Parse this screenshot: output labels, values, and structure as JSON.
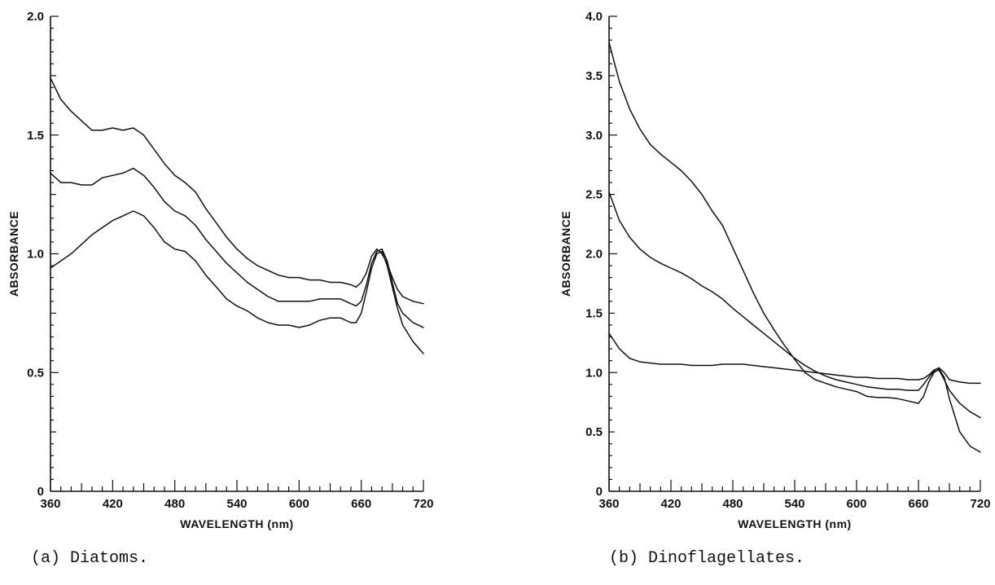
{
  "chart_data": [
    {
      "type": "line",
      "title": "",
      "caption": "(a) Diatoms.",
      "xlabel": "WAVELENGTH (nm)",
      "ylabel": "ABSORBANCE",
      "xlim": [
        360,
        720
      ],
      "ylim": [
        0,
        2.0
      ],
      "xticks": [
        360,
        420,
        480,
        540,
        600,
        660,
        720
      ],
      "xtick_labels": [
        "360",
        "420",
        "480",
        "540",
        "600",
        "660",
        "720"
      ],
      "yticks": [
        0,
        0.5,
        1.0,
        1.5,
        2.0
      ],
      "ytick_labels": [
        "0",
        "0.5",
        "1.0",
        "1.5",
        "2.0"
      ],
      "grid": false,
      "series": [
        {
          "x": [
            360,
            370,
            380,
            390,
            400,
            410,
            420,
            430,
            440,
            450,
            460,
            470,
            480,
            490,
            500,
            510,
            520,
            530,
            540,
            550,
            560,
            570,
            580,
            590,
            600,
            610,
            620,
            630,
            640,
            650,
            655,
            660,
            665,
            670,
            675,
            680,
            685,
            690,
            695,
            700,
            710,
            720
          ],
          "values": [
            1.74,
            1.65,
            1.6,
            1.56,
            1.52,
            1.52,
            1.53,
            1.52,
            1.53,
            1.5,
            1.44,
            1.38,
            1.33,
            1.3,
            1.26,
            1.19,
            1.13,
            1.07,
            1.02,
            0.98,
            0.95,
            0.93,
            0.91,
            0.9,
            0.9,
            0.89,
            0.89,
            0.88,
            0.88,
            0.87,
            0.86,
            0.88,
            0.92,
            0.99,
            1.02,
            1.0,
            0.96,
            0.9,
            0.85,
            0.82,
            0.8,
            0.79
          ]
        },
        {
          "x": [
            360,
            370,
            380,
            390,
            400,
            410,
            420,
            430,
            440,
            450,
            460,
            470,
            480,
            490,
            500,
            510,
            520,
            530,
            540,
            550,
            560,
            570,
            580,
            590,
            600,
            610,
            620,
            630,
            640,
            650,
            655,
            660,
            665,
            670,
            675,
            680,
            685,
            690,
            695,
            700,
            710,
            720
          ],
          "values": [
            1.34,
            1.3,
            1.3,
            1.29,
            1.29,
            1.32,
            1.33,
            1.34,
            1.36,
            1.33,
            1.28,
            1.22,
            1.18,
            1.16,
            1.12,
            1.06,
            1.01,
            0.96,
            0.92,
            0.88,
            0.85,
            0.82,
            0.8,
            0.8,
            0.8,
            0.8,
            0.81,
            0.81,
            0.81,
            0.79,
            0.78,
            0.8,
            0.87,
            0.96,
            1.01,
            1.02,
            0.97,
            0.88,
            0.79,
            0.75,
            0.71,
            0.69
          ]
        },
        {
          "x": [
            360,
            370,
            380,
            390,
            400,
            410,
            420,
            430,
            440,
            450,
            460,
            470,
            480,
            490,
            500,
            510,
            520,
            530,
            540,
            550,
            560,
            570,
            580,
            590,
            600,
            610,
            620,
            630,
            640,
            650,
            655,
            660,
            665,
            670,
            675,
            680,
            685,
            690,
            695,
            700,
            710,
            720
          ],
          "values": [
            0.94,
            0.97,
            1.0,
            1.04,
            1.08,
            1.11,
            1.14,
            1.16,
            1.18,
            1.16,
            1.11,
            1.05,
            1.02,
            1.01,
            0.97,
            0.91,
            0.86,
            0.81,
            0.78,
            0.76,
            0.73,
            0.71,
            0.7,
            0.7,
            0.69,
            0.7,
            0.72,
            0.73,
            0.73,
            0.71,
            0.71,
            0.75,
            0.84,
            0.94,
            1.0,
            1.01,
            0.95,
            0.86,
            0.77,
            0.7,
            0.63,
            0.58
          ]
        }
      ]
    },
    {
      "type": "line",
      "title": "",
      "caption": "(b) Dinoflagellates.",
      "xlabel": "WAVELENGTH (nm)",
      "ylabel": "ABSORBANCE",
      "xlim": [
        360,
        720
      ],
      "ylim": [
        0,
        4.0
      ],
      "xticks": [
        360,
        420,
        480,
        540,
        600,
        660,
        720
      ],
      "xtick_labels": [
        "360",
        "420",
        "480",
        "540",
        "600",
        "660",
        "720"
      ],
      "yticks": [
        0,
        0.5,
        1.0,
        1.5,
        2.0,
        2.5,
        3.0,
        3.5,
        4.0
      ],
      "ytick_labels": [
        "0",
        "0.5",
        "1.0",
        "1.5",
        "2.0",
        "2.5",
        "3.0",
        "3.5",
        "4.0"
      ],
      "grid": false,
      "series": [
        {
          "x": [
            360,
            370,
            380,
            390,
            400,
            410,
            420,
            430,
            440,
            450,
            460,
            470,
            480,
            490,
            500,
            510,
            520,
            530,
            540,
            550,
            560,
            570,
            580,
            590,
            600,
            610,
            620,
            630,
            640,
            650,
            660,
            665,
            670,
            675,
            680,
            685,
            690,
            700,
            710,
            720
          ],
          "values": [
            3.78,
            3.45,
            3.22,
            3.05,
            2.92,
            2.84,
            2.77,
            2.7,
            2.61,
            2.5,
            2.36,
            2.24,
            2.05,
            1.86,
            1.67,
            1.5,
            1.36,
            1.23,
            1.11,
            1.0,
            0.94,
            0.91,
            0.88,
            0.86,
            0.84,
            0.8,
            0.79,
            0.79,
            0.78,
            0.76,
            0.74,
            0.8,
            0.92,
            1.0,
            1.03,
            0.96,
            0.78,
            0.5,
            0.38,
            0.33
          ]
        },
        {
          "x": [
            360,
            370,
            380,
            390,
            400,
            410,
            420,
            430,
            440,
            450,
            460,
            470,
            480,
            490,
            500,
            510,
            520,
            530,
            540,
            550,
            560,
            570,
            580,
            590,
            600,
            610,
            620,
            630,
            640,
            650,
            660,
            665,
            670,
            675,
            680,
            685,
            690,
            700,
            710,
            720
          ],
          "values": [
            2.52,
            2.28,
            2.14,
            2.04,
            1.97,
            1.92,
            1.88,
            1.84,
            1.79,
            1.73,
            1.68,
            1.62,
            1.54,
            1.47,
            1.4,
            1.33,
            1.26,
            1.19,
            1.12,
            1.06,
            1.01,
            0.97,
            0.94,
            0.92,
            0.9,
            0.88,
            0.87,
            0.86,
            0.86,
            0.85,
            0.85,
            0.9,
            0.96,
            1.01,
            1.02,
            0.94,
            0.85,
            0.74,
            0.67,
            0.62
          ]
        },
        {
          "x": [
            360,
            370,
            380,
            390,
            400,
            410,
            420,
            430,
            440,
            450,
            460,
            470,
            480,
            490,
            500,
            510,
            520,
            530,
            540,
            550,
            560,
            570,
            580,
            590,
            600,
            610,
            620,
            630,
            640,
            650,
            660,
            665,
            670,
            675,
            680,
            685,
            690,
            700,
            710,
            720
          ],
          "values": [
            1.33,
            1.2,
            1.12,
            1.09,
            1.08,
            1.07,
            1.07,
            1.07,
            1.06,
            1.06,
            1.06,
            1.07,
            1.07,
            1.07,
            1.06,
            1.05,
            1.04,
            1.03,
            1.02,
            1.01,
            1.0,
            0.99,
            0.98,
            0.97,
            0.96,
            0.96,
            0.95,
            0.95,
            0.95,
            0.94,
            0.94,
            0.95,
            0.98,
            1.02,
            1.04,
            1.0,
            0.94,
            0.92,
            0.91,
            0.91
          ]
        }
      ]
    }
  ]
}
